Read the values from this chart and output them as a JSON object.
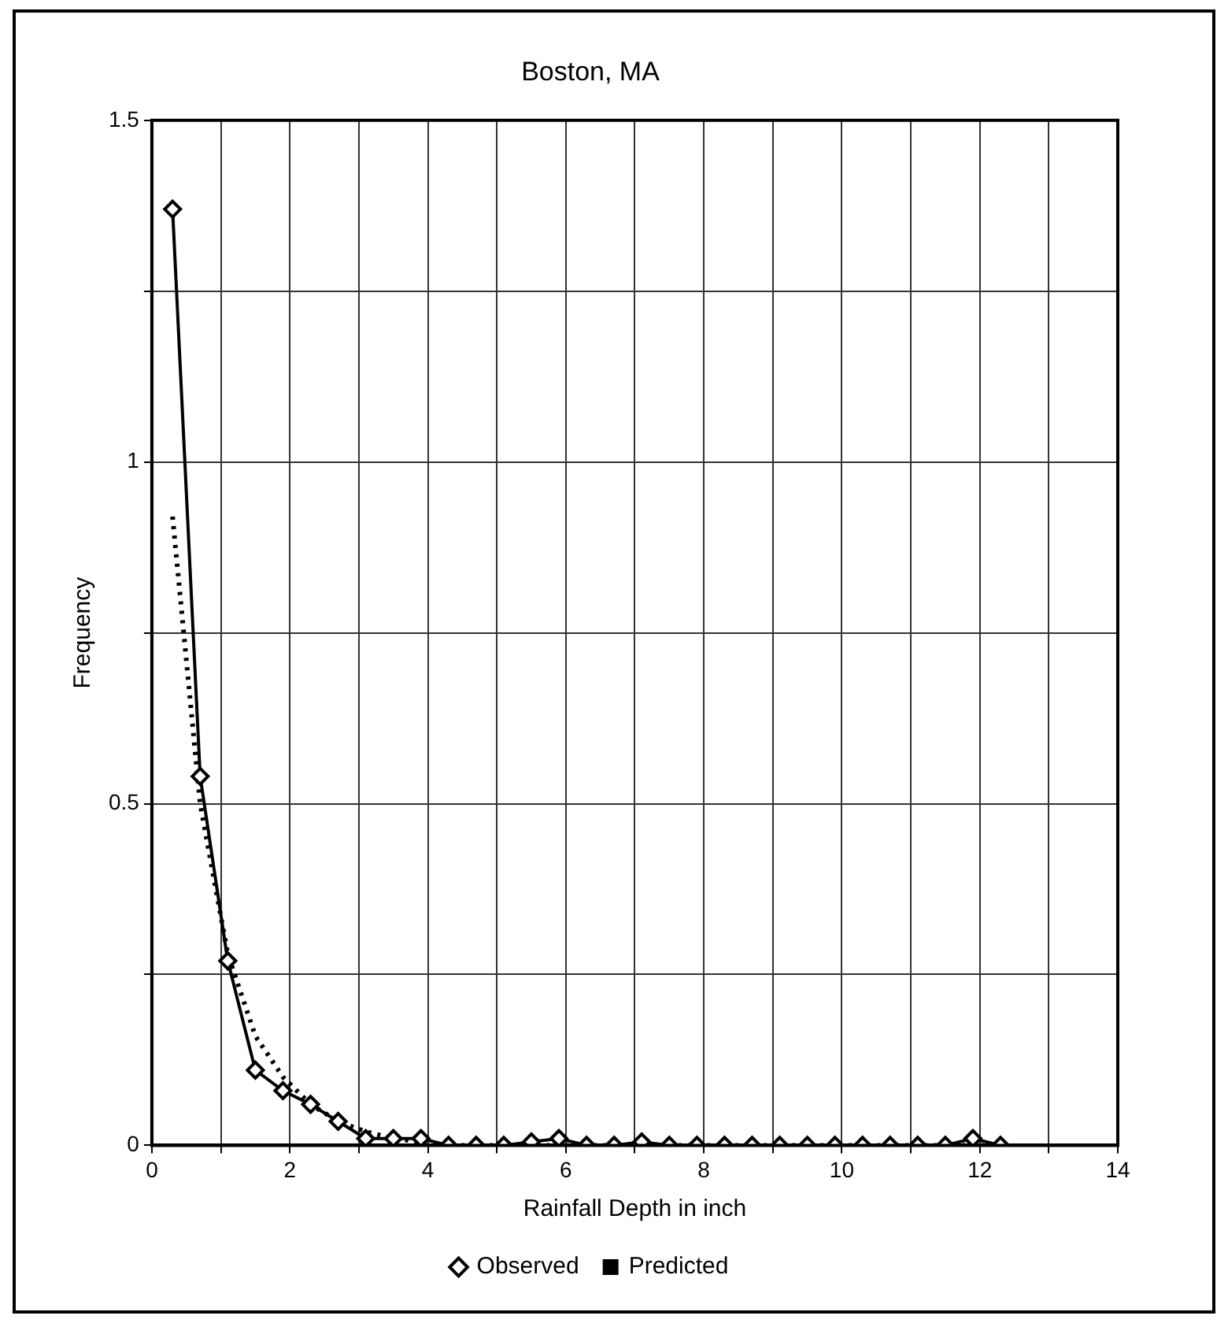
{
  "chart_data": {
    "type": "line",
    "title": "Boston, MA",
    "xlabel": "Rainfall Depth in inch",
    "ylabel": "Frequency",
    "xlim": [
      0,
      14
    ],
    "xticks": [
      0,
      {
        "value": 1,
        "label": null
      },
      2,
      {
        "value": 3,
        "label": null
      },
      4,
      {
        "value": 5,
        "label": null
      },
      6,
      {
        "value": 7,
        "label": null
      },
      8,
      {
        "value": 9,
        "label": null
      },
      10,
      {
        "value": 11,
        "label": null
      },
      12,
      {
        "value": 13,
        "label": null
      },
      14
    ],
    "ylim": [
      0,
      1.5
    ],
    "yticks": [
      0,
      {
        "value": 0.25,
        "label": null
      },
      0.5,
      {
        "value": 0.75,
        "label": null
      },
      1,
      {
        "value": 1.25,
        "label": null
      },
      1.5
    ],
    "x": [
      0.3,
      0.7,
      1.1,
      1.5,
      1.9,
      2.3,
      2.7,
      3.1,
      3.5,
      3.9,
      4.3,
      4.7,
      5.1,
      5.5,
      5.9,
      6.3,
      6.7,
      7.1,
      7.5,
      7.9,
      8.3,
      8.7,
      9.1,
      9.5,
      9.9,
      10.3,
      10.7,
      11.1,
      11.5,
      11.9,
      12.3
    ],
    "series": [
      {
        "name": "Observed",
        "color": "#000000",
        "marker": "diamond",
        "line_style": "solid",
        "values": [
          1.37,
          0.54,
          0.27,
          0.11,
          0.08,
          0.06,
          0.035,
          0.01,
          0.01,
          0.01,
          0,
          0,
          0,
          0.005,
          0.01,
          0,
          0,
          0.005,
          0,
          0,
          0,
          0,
          0,
          0,
          0,
          0,
          0,
          0,
          0,
          0.01,
          0
        ]
      },
      {
        "name": "Predicted",
        "color": "#000000",
        "marker": "none",
        "line_style": "dotted",
        "values": [
          0.92,
          0.5,
          0.28,
          0.16,
          0.1,
          0.06,
          0.035,
          0.02,
          0.01,
          0.005,
          0,
          0,
          0,
          0,
          0,
          0,
          0,
          0,
          0,
          0,
          0,
          0,
          0,
          0,
          0,
          0,
          0,
          0,
          0,
          0,
          0
        ]
      }
    ],
    "grid": true,
    "legend": "bottom"
  }
}
